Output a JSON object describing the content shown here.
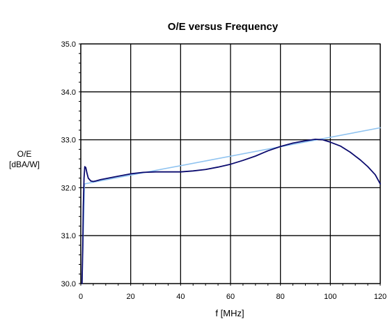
{
  "chart_data": {
    "type": "line",
    "title": "O/E versus Frequency",
    "xlabel": "f [MHz]",
    "ylabel": [
      "O/E",
      "[dBA/W]"
    ],
    "xlim": [
      0,
      120
    ],
    "ylim": [
      30.0,
      35.0
    ],
    "x_ticks": [
      "0",
      "20",
      "40",
      "60",
      "80",
      "100",
      "120"
    ],
    "y_ticks": [
      "30.0",
      "31.0",
      "32.0",
      "33.0",
      "34.0",
      "35.0"
    ],
    "grid": true,
    "legend": "none",
    "colors": {
      "measured": "#0a0a6e",
      "fit": "#8fc3f0",
      "grid": "#000000"
    },
    "series": [
      {
        "points": [
          [
            0.5,
            30.0
          ],
          [
            0.8,
            30.8
          ],
          [
            1.0,
            31.6
          ],
          [
            1.3,
            32.2
          ],
          [
            1.6,
            32.44
          ],
          [
            2.0,
            32.42
          ],
          [
            2.5,
            32.3
          ],
          [
            3.0,
            32.2
          ],
          [
            4.0,
            32.14
          ],
          [
            5.0,
            32.13
          ],
          [
            6.0,
            32.14
          ],
          [
            8.0,
            32.17
          ],
          [
            10.0,
            32.19
          ],
          [
            15.0,
            32.24
          ],
          [
            20.0,
            32.29
          ],
          [
            25.0,
            32.32
          ],
          [
            30.0,
            32.33
          ],
          [
            35.0,
            32.33
          ],
          [
            40.0,
            32.33
          ],
          [
            45.0,
            32.35
          ],
          [
            50.0,
            32.38
          ],
          [
            55.0,
            32.43
          ],
          [
            60.0,
            32.49
          ],
          [
            65.0,
            32.57
          ],
          [
            70.0,
            32.66
          ],
          [
            75.0,
            32.77
          ],
          [
            80.0,
            32.86
          ],
          [
            85.0,
            32.93
          ],
          [
            90.0,
            32.98
          ],
          [
            94.0,
            33.01
          ],
          [
            97.0,
            33.0
          ],
          [
            100.0,
            32.95
          ],
          [
            104.0,
            32.87
          ],
          [
            108.0,
            32.74
          ],
          [
            112.0,
            32.58
          ],
          [
            115.0,
            32.44
          ],
          [
            118.0,
            32.27
          ],
          [
            120.0,
            32.08
          ]
        ]
      },
      {
        "points": [
          [
            0.5,
            30.0
          ],
          [
            1.5,
            32.08
          ],
          [
            120.0,
            33.25
          ]
        ]
      }
    ]
  }
}
